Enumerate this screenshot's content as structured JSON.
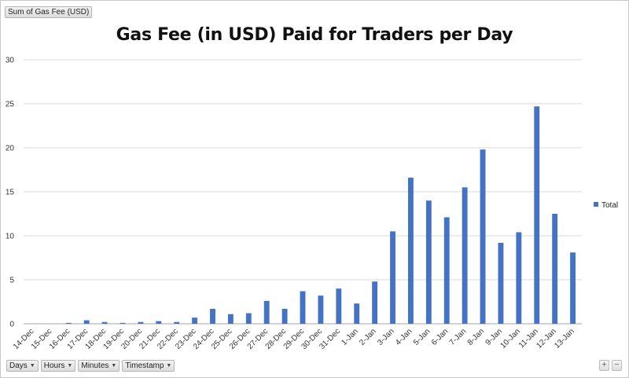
{
  "pivot": {
    "value_field": "Sum of Gas Fee (USD)",
    "axis_fields": [
      "Days",
      "Hours",
      "Minutes",
      "Timestamp"
    ],
    "zoom_in": "+",
    "zoom_out": "−"
  },
  "colors": {
    "bar": "#4472c4",
    "grid": "#d9d9d9",
    "axis": "#a6a6a6"
  },
  "chart_data": {
    "type": "bar",
    "title": "Gas Fee (in USD) Paid for Traders per Day",
    "xlabel": "",
    "ylabel": "",
    "ylim": [
      0,
      30
    ],
    "yticks": [
      0,
      5,
      10,
      15,
      20,
      25,
      30
    ],
    "grid": true,
    "legend_position": "right",
    "categories": [
      "14-Dec",
      "15-Dec",
      "16-Dec",
      "17-Dec",
      "18-Dec",
      "19-Dec",
      "20-Dec",
      "21-Dec",
      "22-Dec",
      "23-Dec",
      "24-Dec",
      "25-Dec",
      "26-Dec",
      "27-Dec",
      "28-Dec",
      "29-Dec",
      "30-Dec",
      "31-Dec",
      "1-Jan",
      "2-Jan",
      "3-Jan",
      "4-Jan",
      "5-Jan",
      "6-Jan",
      "7-Jan",
      "8-Jan",
      "9-Jan",
      "10-Jan",
      "11-Jan",
      "12-Jan",
      "13-Jan"
    ],
    "series": [
      {
        "name": "Total",
        "values": [
          0,
          0,
          0.1,
          0.4,
          0.2,
          0.1,
          0.2,
          0.3,
          0.2,
          0.7,
          1.7,
          1.1,
          1.2,
          2.6,
          1.7,
          3.7,
          3.2,
          4.0,
          2.3,
          4.8,
          10.5,
          16.6,
          14.0,
          12.1,
          15.5,
          19.8,
          9.2,
          10.4,
          24.7,
          12.5,
          8.1
        ]
      }
    ]
  }
}
